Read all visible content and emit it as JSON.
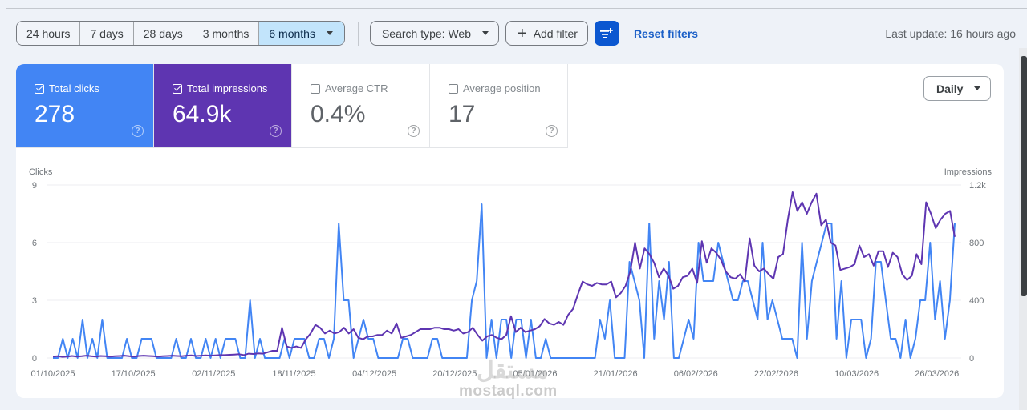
{
  "toolbar": {
    "date_ranges": [
      {
        "label": "24 hours",
        "active": false
      },
      {
        "label": "7 days",
        "active": false
      },
      {
        "label": "28 days",
        "active": false
      },
      {
        "label": "3 months",
        "active": false
      },
      {
        "label": "6 months",
        "active": true
      }
    ],
    "search_type": "Search type: Web",
    "add_filter": "Add filter",
    "reset_filters": "Reset filters",
    "last_update": "Last update: 16 hours ago"
  },
  "metrics": {
    "clicks": {
      "label": "Total clicks",
      "value": "278",
      "checked": true,
      "color": "#4285f4"
    },
    "impressions": {
      "label": "Total impressions",
      "value": "64.9k",
      "checked": true,
      "color": "#5e35b1"
    },
    "ctr": {
      "label": "Average CTR",
      "value": "0.4%",
      "checked": false
    },
    "position": {
      "label": "Average position",
      "value": "17",
      "checked": false
    }
  },
  "granularity": "Daily",
  "watermark": {
    "text": "mostaql.com",
    "arabic": "مستقل"
  },
  "chart_data": {
    "type": "line",
    "title": "",
    "x_start": "01/10/2025",
    "x_ticks": [
      "01/10/2025",
      "17/10/2025",
      "02/11/2025",
      "18/11/2025",
      "04/12/2025",
      "20/12/2025",
      "05/01/2026",
      "21/01/2026",
      "06/02/2026",
      "22/02/2026",
      "10/03/2026",
      "26/03/2026"
    ],
    "left_axis": {
      "label": "Clicks",
      "ticks": [
        "0",
        "3",
        "6",
        "9"
      ],
      "ylim": [
        0,
        9
      ]
    },
    "right_axis": {
      "label": "Impressions",
      "ticks": [
        "0",
        "400",
        "800",
        "1.2k"
      ],
      "ylim": [
        0,
        1200
      ]
    },
    "grid": true,
    "series": [
      {
        "name": "Clicks",
        "axis": "left",
        "color": "#4285f4",
        "values": [
          0,
          0,
          1,
          0,
          1,
          0,
          2,
          0,
          1,
          0,
          2,
          0,
          0,
          0,
          0,
          1,
          0,
          0,
          1,
          1,
          1,
          0,
          0,
          0,
          0,
          1,
          0,
          0,
          1,
          0,
          0,
          1,
          0,
          1,
          0,
          1,
          1,
          1,
          0,
          0,
          3,
          0,
          1,
          0,
          0,
          0,
          0,
          1,
          0,
          1,
          1,
          1,
          0,
          0,
          1,
          1,
          0,
          1,
          7,
          3,
          3,
          0,
          1,
          2,
          1,
          1,
          0,
          0,
          0,
          0,
          0,
          1,
          1,
          0,
          0,
          0,
          0,
          1,
          1,
          0,
          0,
          0,
          0,
          0,
          0,
          3,
          4,
          8,
          0,
          2,
          0,
          2,
          2,
          0,
          2,
          2,
          0,
          2,
          0,
          0,
          1,
          0,
          0,
          0,
          0,
          0,
          0,
          0,
          0,
          0,
          0,
          2,
          1,
          3,
          0,
          0,
          0,
          5,
          4,
          3,
          0,
          7,
          1,
          4,
          2,
          5,
          0,
          0,
          1,
          2,
          1,
          6,
          4,
          4,
          4,
          6,
          5,
          4,
          3,
          3,
          4,
          4,
          3,
          2,
          6,
          2,
          3,
          2,
          1,
          1,
          1,
          0,
          6,
          1,
          4,
          5,
          6,
          7,
          7,
          1,
          4,
          0,
          2,
          2,
          2,
          0,
          1,
          5,
          5,
          3,
          1,
          1,
          0,
          2,
          0,
          1,
          3,
          3,
          6,
          2,
          4,
          1,
          3,
          7
        ]
      },
      {
        "name": "Impressions",
        "axis": "right",
        "color": "#5e35b1",
        "values": [
          10,
          12,
          8,
          10,
          14,
          10,
          12,
          16,
          12,
          10,
          14,
          12,
          10,
          12,
          14,
          16,
          12,
          10,
          14,
          16,
          14,
          12,
          10,
          12,
          14,
          16,
          14,
          12,
          16,
          18,
          14,
          16,
          18,
          16,
          18,
          20,
          20,
          22,
          24,
          26,
          20,
          30,
          28,
          32,
          30,
          40,
          50,
          50,
          210,
          80,
          70,
          80,
          70,
          130,
          170,
          230,
          210,
          170,
          190,
          170,
          180,
          210,
          170,
          200,
          140,
          130,
          150,
          150,
          160,
          160,
          190,
          170,
          240,
          140,
          150,
          160,
          180,
          200,
          200,
          200,
          210,
          210,
          200,
          200,
          190,
          200,
          170,
          180,
          210,
          160,
          120,
          150,
          160,
          140,
          130,
          160,
          290,
          180,
          210,
          180,
          190,
          200,
          220,
          270,
          240,
          230,
          250,
          230,
          300,
          340,
          440,
          530,
          510,
          500,
          520,
          510,
          510,
          530,
          420,
          450,
          500,
          600,
          800,
          620,
          760,
          720,
          660,
          560,
          620,
          570,
          480,
          500,
          560,
          570,
          620,
          520,
          810,
          660,
          760,
          730,
          680,
          600,
          560,
          550,
          580,
          530,
          830,
          640,
          600,
          620,
          580,
          550,
          700,
          720,
          960,
          1150,
          1020,
          1080,
          1000,
          1080,
          1140,
          920,
          960,
          800,
          780,
          610,
          620,
          630,
          650,
          780,
          700,
          720,
          640,
          740,
          740,
          630,
          730,
          700,
          580,
          540,
          570,
          720,
          650,
          1080,
          1000,
          900,
          960,
          1000,
          1020,
          840
        ]
      }
    ]
  }
}
